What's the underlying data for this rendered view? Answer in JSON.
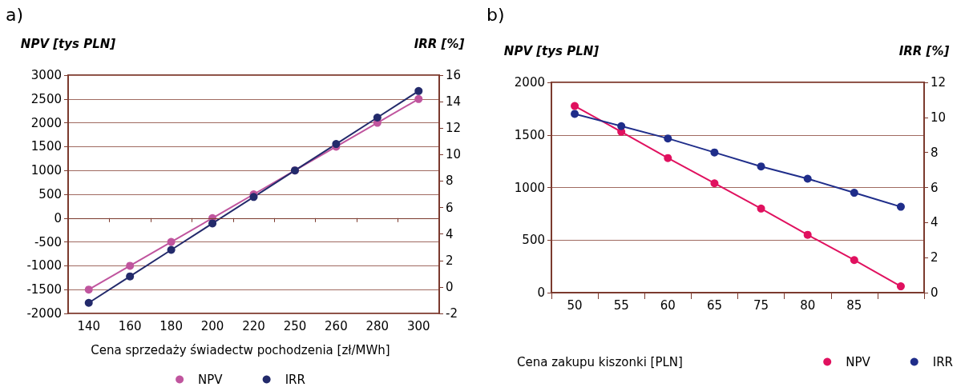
{
  "chart_data": [
    {
      "type": "line",
      "title": "a)",
      "xlabel": "Cena sprzedaży świadectw pochodzenia [zł/MWh]",
      "ylabel": "NPV [tys PLN]",
      "y2label": "IRR [%]",
      "categories": [
        "140",
        "160",
        "180",
        "200",
        "220",
        "250",
        "260",
        "280",
        "300"
      ],
      "series": [
        {
          "name": "NPV",
          "color": "#c0559e",
          "values": [
            -1500,
            -1000,
            -500,
            0,
            500,
            1000,
            1500,
            2000,
            2500
          ]
        },
        {
          "name": "IRR",
          "color": "#232a6b",
          "axis": "y2",
          "values": [
            -1.2,
            0.8,
            2.8,
            4.8,
            6.8,
            8.8,
            10.8,
            12.8,
            14.8
          ]
        }
      ],
      "ylim": [
        -2000,
        3000
      ],
      "yticks": [
        -2000,
        -1500,
        -1000,
        -500,
        0,
        500,
        1000,
        1500,
        2000,
        2500,
        3000
      ],
      "y2lim": [
        -2,
        16
      ],
      "y2ticks": [
        -2,
        0,
        2,
        4,
        6,
        8,
        10,
        12,
        14,
        16
      ],
      "ref_lines": [
        {
          "axis": "y",
          "value": 0,
          "color": "#7b3a2e"
        }
      ],
      "grid": "y",
      "legend": "bottom",
      "marker": "circle",
      "line_style": "solid"
    },
    {
      "type": "line",
      "title": "b)",
      "xlabel": "Cena zakupu kiszonki [PLN]",
      "ylabel": "NPV [tys PLN]",
      "y2label": "IRR [%]",
      "categories": [
        "50",
        "55",
        "60",
        "65",
        "75",
        "80",
        "85",
        null
      ],
      "series": [
        {
          "name": "NPV",
          "color": "#e0115f",
          "values": [
            1775,
            1530,
            1280,
            1040,
            800,
            550,
            310,
            60
          ]
        },
        {
          "name": "IRR",
          "color": "#1f2d8a",
          "axis": "y2",
          "values": [
            10.2,
            9.5,
            8.8,
            8.0,
            7.2,
            6.5,
            5.7,
            4.9
          ]
        }
      ],
      "ylim": [
        0,
        2000
      ],
      "yticks": [
        0,
        500,
        1000,
        1500,
        2000
      ],
      "y2lim": [
        0,
        12
      ],
      "y2ticks": [
        0,
        2,
        4,
        6,
        8,
        10,
        12
      ],
      "grid": "y",
      "legend": "bottom right",
      "marker": "circle",
      "line_style": "solid"
    }
  ]
}
